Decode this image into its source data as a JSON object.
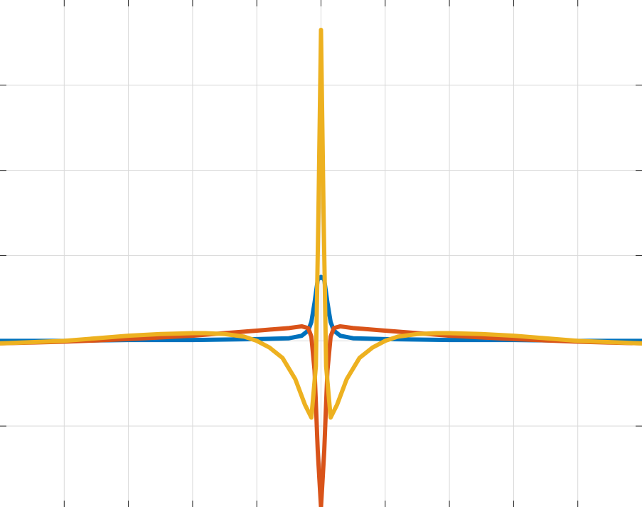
{
  "chart_data": {
    "type": "line",
    "title": "",
    "xlabel": "",
    "ylabel": "",
    "grid": true,
    "legend": "none",
    "xlim": [
      -5,
      5
    ],
    "ylim": [
      -1.95,
      4.0
    ],
    "xticks": [
      -4,
      -3,
      -2,
      -1,
      0,
      1,
      2,
      3,
      4
    ],
    "yticks": [
      -1,
      0,
      1,
      2,
      3
    ],
    "series": [
      {
        "color": "#0072BD",
        "x": [
          -5,
          -4,
          -3,
          -2,
          -1,
          -0.5,
          -0.3,
          -0.2,
          -0.15,
          -0.1,
          -0.05,
          0,
          0.05,
          0.1,
          0.15,
          0.2,
          0.3,
          0.5,
          1,
          2,
          3,
          4,
          5
        ],
        "y": [
          0.0,
          0.0,
          0.01,
          0.01,
          0.02,
          0.03,
          0.06,
          0.12,
          0.22,
          0.45,
          0.72,
          0.75,
          0.72,
          0.45,
          0.22,
          0.12,
          0.06,
          0.03,
          0.02,
          0.01,
          0.01,
          0.0,
          0.0
        ]
      },
      {
        "color": "#D95319",
        "x": [
          -5,
          -4,
          -3,
          -2,
          -1.5,
          -1,
          -0.5,
          -0.3,
          -0.2,
          -0.15,
          -0.1,
          -0.05,
          0,
          0.05,
          0.1,
          0.15,
          0.2,
          0.3,
          0.5,
          1,
          1.5,
          2,
          3,
          4,
          5
        ],
        "y": [
          -0.03,
          -0.01,
          0.02,
          0.06,
          0.09,
          0.12,
          0.15,
          0.17,
          0.15,
          0.05,
          -0.35,
          -1.3,
          -1.95,
          -1.3,
          -0.35,
          0.05,
          0.15,
          0.17,
          0.15,
          0.12,
          0.09,
          0.06,
          0.02,
          -0.01,
          -0.03
        ]
      },
      {
        "color": "#EDB120",
        "x": [
          -5,
          -4,
          -3.5,
          -3,
          -2.5,
          -2,
          -1.8,
          -1.5,
          -1.2,
          -1,
          -0.8,
          -0.6,
          -0.4,
          -0.25,
          -0.15,
          -0.08,
          -0.04,
          0,
          0.04,
          0.08,
          0.15,
          0.25,
          0.4,
          0.6,
          0.8,
          1,
          1.2,
          1.5,
          1.8,
          2,
          2.5,
          3,
          3.5,
          4,
          5
        ],
        "y": [
          -0.03,
          0.0,
          0.03,
          0.06,
          0.08,
          0.09,
          0.09,
          0.08,
          0.05,
          0.0,
          -0.08,
          -0.2,
          -0.45,
          -0.75,
          -0.9,
          -0.3,
          1.5,
          3.65,
          1.5,
          -0.3,
          -0.9,
          -0.75,
          -0.45,
          -0.2,
          -0.08,
          0.0,
          0.05,
          0.08,
          0.09,
          0.09,
          0.08,
          0.06,
          0.03,
          0.0,
          -0.03
        ]
      }
    ]
  }
}
